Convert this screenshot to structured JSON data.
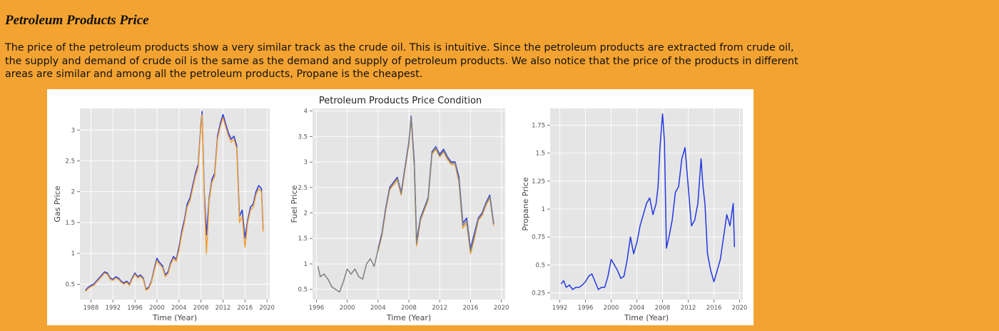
{
  "page": {
    "heading": "Petroleum Products Price",
    "paragraph": "The price of the petroleum products show a very similar track as the crude oil. This is intuitive. Since the petroleum products are extracted from crude oil, the supply and demand of crude oil is the same as the demand and supply of petroleum products. We also notice that the price of the products in different areas are similar and among all the petroleum products, Propane is the cheapest."
  },
  "colors": {
    "background": "#f3a331",
    "blue": "#2438e0",
    "orange": "#f0a030",
    "gray": "#808080"
  },
  "chart_data": [
    {
      "type": "line",
      "title": "",
      "xlabel": "Time (Year)",
      "ylabel": "Gas Price",
      "xlim": [
        1986,
        2020.5
      ],
      "ylim": [
        0.25,
        3.35
      ],
      "xticks": [
        1988,
        1992,
        1996,
        2000,
        2004,
        2008,
        2012,
        2016,
        2020
      ],
      "yticks": [
        0.5,
        1.0,
        1.5,
        2.0,
        2.5,
        3.0
      ],
      "grid": true,
      "series": [
        {
          "color": "#2438e0",
          "x": [
            1987,
            1987.5,
            1988,
            1988.5,
            1989,
            1989.5,
            1990,
            1990.5,
            1991,
            1991.5,
            1992,
            1992.5,
            1993,
            1993.5,
            1994,
            1994.5,
            1995,
            1995.5,
            1996,
            1996.5,
            1997,
            1997.5,
            1998,
            1998.5,
            1999,
            1999.5,
            2000,
            2000.5,
            2001,
            2001.5,
            2002,
            2002.5,
            2003,
            2003.5,
            2004,
            2004.5,
            2005,
            2005.5,
            2006,
            2006.5,
            2007,
            2007.5,
            2008,
            2008.2,
            2008.6,
            2009,
            2009.5,
            2010,
            2010.5,
            2011,
            2011.5,
            2012,
            2012.5,
            2013,
            2013.5,
            2014,
            2014.5,
            2015,
            2015.5,
            2016,
            2016.5,
            2017,
            2017.5,
            2018,
            2018.5,
            2019,
            2019.3
          ],
          "y": [
            0.4,
            0.45,
            0.48,
            0.5,
            0.55,
            0.6,
            0.65,
            0.7,
            0.68,
            0.6,
            0.58,
            0.62,
            0.6,
            0.55,
            0.52,
            0.55,
            0.5,
            0.6,
            0.68,
            0.62,
            0.65,
            0.6,
            0.42,
            0.45,
            0.55,
            0.75,
            0.92,
            0.85,
            0.8,
            0.65,
            0.7,
            0.85,
            0.95,
            0.9,
            1.1,
            1.35,
            1.55,
            1.8,
            1.9,
            2.1,
            2.3,
            2.45,
            3.1,
            3.3,
            2.0,
            1.3,
            1.9,
            2.2,
            2.3,
            2.9,
            3.1,
            3.25,
            3.1,
            2.95,
            2.85,
            2.9,
            2.75,
            1.6,
            1.7,
            1.25,
            1.55,
            1.75,
            1.8,
            2.0,
            2.1,
            2.05,
            1.4
          ]
        },
        {
          "color": "#f0a030",
          "x": [
            1987,
            1987.5,
            1988,
            1988.5,
            1989,
            1989.5,
            1990,
            1990.5,
            1991,
            1991.5,
            1992,
            1992.5,
            1993,
            1993.5,
            1994,
            1994.5,
            1995,
            1995.5,
            1996,
            1996.5,
            1997,
            1997.5,
            1998,
            1998.5,
            1999,
            1999.5,
            2000,
            2000.5,
            2001,
            2001.5,
            2002,
            2002.5,
            2003,
            2003.5,
            2004,
            2004.5,
            2005,
            2005.5,
            2006,
            2006.5,
            2007,
            2007.5,
            2008,
            2008.2,
            2008.6,
            2009,
            2009.5,
            2010,
            2010.5,
            2011,
            2011.5,
            2012,
            2012.5,
            2013,
            2013.5,
            2014,
            2014.5,
            2015,
            2015.5,
            2016,
            2016.5,
            2017,
            2017.5,
            2018,
            2018.5,
            2019,
            2019.3
          ],
          "y": [
            0.38,
            0.43,
            0.46,
            0.48,
            0.53,
            0.58,
            0.63,
            0.68,
            0.66,
            0.58,
            0.56,
            0.6,
            0.58,
            0.53,
            0.5,
            0.53,
            0.48,
            0.58,
            0.66,
            0.6,
            0.63,
            0.58,
            0.4,
            0.43,
            0.53,
            0.72,
            0.88,
            0.82,
            0.77,
            0.62,
            0.67,
            0.82,
            0.92,
            0.87,
            1.05,
            1.3,
            1.5,
            1.75,
            1.85,
            2.05,
            2.25,
            2.4,
            3.05,
            3.25,
            1.9,
            1.0,
            1.85,
            2.15,
            2.25,
            2.85,
            3.05,
            3.2,
            3.05,
            2.9,
            2.8,
            2.85,
            2.7,
            1.5,
            1.6,
            1.1,
            1.5,
            1.7,
            1.75,
            1.95,
            2.05,
            2.0,
            1.35
          ]
        }
      ]
    },
    {
      "type": "line",
      "title": "",
      "xlabel": "Time (Year)",
      "ylabel": "Fuel Price",
      "xlim": [
        1995.5,
        2020.5
      ],
      "ylim": [
        0.3,
        4.05
      ],
      "xticks": [
        1996,
        2000,
        2004,
        2008,
        2012,
        2016,
        2020
      ],
      "yticks": [
        0.5,
        1.0,
        1.5,
        2.0,
        2.5,
        3.0,
        3.5,
        4.0
      ],
      "grid": true,
      "series": [
        {
          "color": "#2438e0",
          "x": [
            2004,
            2004.5,
            2005,
            2005.5,
            2006,
            2006.5,
            2007,
            2007.5,
            2008,
            2008.3,
            2008.7,
            2009,
            2009.5,
            2010,
            2010.5,
            2011,
            2011.5,
            2012,
            2012.5,
            2013,
            2013.5,
            2014,
            2014.5,
            2015,
            2015.5,
            2016,
            2016.5,
            2017,
            2017.5,
            2018,
            2018.5,
            2019
          ],
          "y": [
            1.3,
            1.6,
            2.1,
            2.5,
            2.6,
            2.7,
            2.4,
            2.9,
            3.4,
            3.9,
            3.0,
            1.45,
            1.9,
            2.1,
            2.3,
            3.2,
            3.3,
            3.15,
            3.25,
            3.1,
            3.0,
            3.0,
            2.7,
            1.8,
            1.9,
            1.3,
            1.6,
            1.9,
            2.0,
            2.2,
            2.35,
            1.8
          ]
        },
        {
          "color": "#f0a030",
          "x": [
            2004,
            2004.5,
            2005,
            2005.5,
            2006,
            2006.5,
            2007,
            2007.5,
            2008,
            2008.3,
            2008.7,
            2009,
            2009.5,
            2010,
            2010.5,
            2011,
            2011.5,
            2012,
            2012.5,
            2013,
            2013.5,
            2014,
            2014.5,
            2015,
            2015.5,
            2016,
            2016.5,
            2017,
            2017.5,
            2018,
            2018.5,
            2019
          ],
          "y": [
            1.25,
            1.55,
            2.05,
            2.45,
            2.55,
            2.65,
            2.35,
            2.85,
            3.35,
            3.85,
            2.9,
            1.35,
            1.85,
            2.05,
            2.25,
            3.15,
            3.25,
            3.1,
            3.2,
            3.05,
            2.95,
            2.95,
            2.6,
            1.7,
            1.8,
            1.2,
            1.5,
            1.85,
            1.95,
            2.15,
            2.3,
            1.75
          ]
        },
        {
          "color": "#808080",
          "x": [
            1996.2,
            1996.5,
            1997,
            1997.5,
            1998,
            1998.5,
            1999,
            1999.5,
            2000,
            2000.5,
            2001,
            2001.5,
            2002,
            2002.5,
            2003,
            2003.5,
            2004,
            2004.5,
            2005,
            2005.5,
            2006,
            2006.5,
            2007,
            2007.5,
            2008,
            2008.3,
            2008.7,
            2009,
            2009.5,
            2010,
            2010.5,
            2011,
            2011.5,
            2012,
            2012.5,
            2013,
            2013.5,
            2014,
            2014.5,
            2015,
            2015.5,
            2016,
            2016.5,
            2017,
            2017.5,
            2018,
            2018.5,
            2019
          ],
          "y": [
            0.95,
            0.75,
            0.8,
            0.7,
            0.55,
            0.5,
            0.45,
            0.65,
            0.9,
            0.8,
            0.9,
            0.75,
            0.7,
            1.0,
            1.1,
            0.95,
            1.28,
            1.58,
            2.08,
            2.48,
            2.58,
            2.68,
            2.38,
            2.88,
            3.38,
            3.88,
            2.95,
            1.4,
            1.88,
            2.08,
            2.28,
            3.18,
            3.28,
            3.12,
            3.22,
            3.08,
            2.98,
            2.98,
            2.65,
            1.75,
            1.85,
            1.25,
            1.55,
            1.88,
            1.98,
            2.18,
            2.32,
            1.78
          ]
        }
      ]
    },
    {
      "type": "line",
      "title": "",
      "xlabel": "Time (Year)",
      "ylabel": "Propane Price",
      "xlim": [
        1990.5,
        2020.5
      ],
      "ylim": [
        0.19,
        1.9
      ],
      "xticks": [
        1992,
        1996,
        2000,
        2004,
        2008,
        2012,
        2016,
        2020
      ],
      "yticks": [
        0.25,
        0.5,
        0.75,
        1.0,
        1.25,
        1.5,
        1.75
      ],
      "grid": true,
      "series": [
        {
          "color": "#2438e0",
          "x": [
            1992.2,
            1992.6,
            1993,
            1993.5,
            1994,
            1994.5,
            1995,
            1995.5,
            1996,
            1996.5,
            1997,
            1997.5,
            1998,
            1998.5,
            1999,
            1999.5,
            2000,
            2000.5,
            2001,
            2001.5,
            2002,
            2002.5,
            2003,
            2003.5,
            2004,
            2004.5,
            2005,
            2005.5,
            2006,
            2006.5,
            2007,
            2007.3,
            2007.6,
            2008,
            2008.3,
            2008.6,
            2009,
            2009.5,
            2010,
            2010.5,
            2011,
            2011.5,
            2012,
            2012.5,
            2013,
            2013.5,
            2014,
            2014.3,
            2014.6,
            2015,
            2015.5,
            2016,
            2016.5,
            2017,
            2017.5,
            2018,
            2018.5,
            2019,
            2019.2
          ],
          "y": [
            0.33,
            0.36,
            0.3,
            0.32,
            0.28,
            0.3,
            0.3,
            0.32,
            0.35,
            0.4,
            0.42,
            0.35,
            0.28,
            0.3,
            0.3,
            0.4,
            0.55,
            0.5,
            0.45,
            0.38,
            0.4,
            0.55,
            0.75,
            0.6,
            0.7,
            0.85,
            0.95,
            1.05,
            1.1,
            0.95,
            1.05,
            1.2,
            1.55,
            1.85,
            1.6,
            0.65,
            0.75,
            0.9,
            1.15,
            1.2,
            1.45,
            1.55,
            1.2,
            0.85,
            0.9,
            1.05,
            1.45,
            1.2,
            1.05,
            0.6,
            0.45,
            0.35,
            0.45,
            0.55,
            0.75,
            0.95,
            0.85,
            1.05,
            0.66
          ]
        }
      ]
    }
  ]
}
